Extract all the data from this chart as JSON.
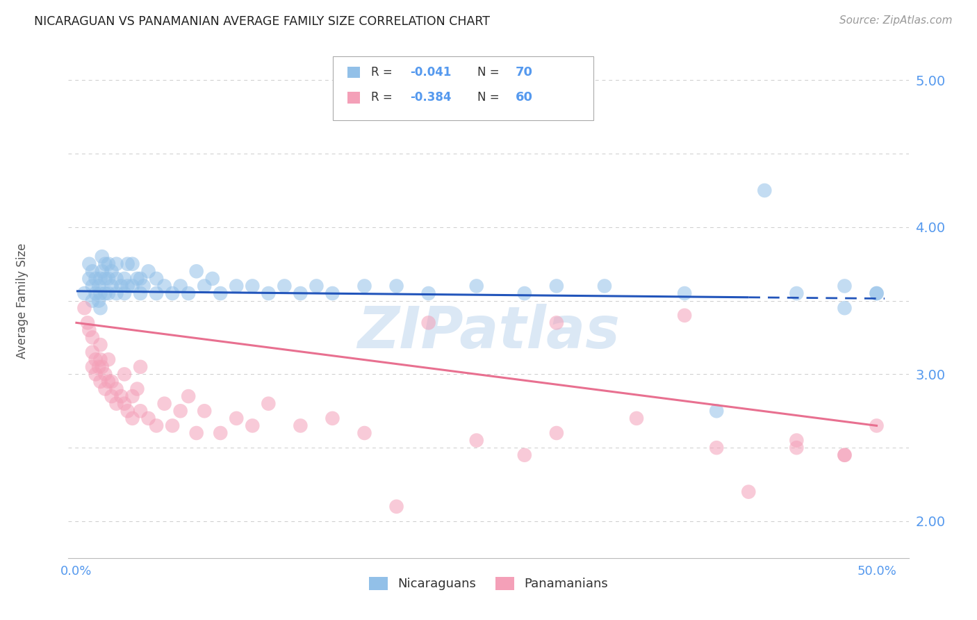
{
  "title": "NICARAGUAN VS PANAMANIAN AVERAGE FAMILY SIZE CORRELATION CHART",
  "source": "Source: ZipAtlas.com",
  "ylabel": "Average Family Size",
  "ylim": [
    1.75,
    5.25
  ],
  "xlim": [
    -0.005,
    0.52
  ],
  "yticks": [
    2.0,
    3.0,
    4.0,
    5.0
  ],
  "xticks": [
    0.0,
    0.1,
    0.2,
    0.3,
    0.4,
    0.5
  ],
  "blue_R": "-0.041",
  "blue_N": "70",
  "pink_R": "-0.384",
  "pink_N": "60",
  "legend_label_blue": "Nicaraguans",
  "legend_label_pink": "Panamanians",
  "blue_color": "#92C0E8",
  "pink_color": "#F4A0B8",
  "blue_line_color": "#2255BB",
  "pink_line_color": "#E87090",
  "bg_color": "#FFFFFF",
  "watermark": "ZIPatlas",
  "blue_x": [
    0.005,
    0.008,
    0.008,
    0.01,
    0.01,
    0.01,
    0.012,
    0.012,
    0.014,
    0.014,
    0.015,
    0.015,
    0.015,
    0.016,
    0.016,
    0.018,
    0.018,
    0.018,
    0.02,
    0.02,
    0.02,
    0.022,
    0.022,
    0.025,
    0.025,
    0.025,
    0.028,
    0.03,
    0.03,
    0.032,
    0.032,
    0.035,
    0.035,
    0.038,
    0.04,
    0.04,
    0.042,
    0.045,
    0.05,
    0.05,
    0.055,
    0.06,
    0.065,
    0.07,
    0.075,
    0.08,
    0.085,
    0.09,
    0.1,
    0.11,
    0.12,
    0.13,
    0.14,
    0.15,
    0.16,
    0.18,
    0.2,
    0.22,
    0.25,
    0.28,
    0.3,
    0.33,
    0.38,
    0.4,
    0.43,
    0.45,
    0.48,
    0.5,
    0.48,
    0.5
  ],
  "blue_y": [
    3.55,
    3.65,
    3.75,
    3.5,
    3.6,
    3.7,
    3.55,
    3.65,
    3.5,
    3.6,
    3.45,
    3.55,
    3.65,
    3.7,
    3.8,
    3.55,
    3.65,
    3.75,
    3.55,
    3.65,
    3.75,
    3.6,
    3.7,
    3.55,
    3.65,
    3.75,
    3.6,
    3.55,
    3.65,
    3.6,
    3.75,
    3.6,
    3.75,
    3.65,
    3.55,
    3.65,
    3.6,
    3.7,
    3.55,
    3.65,
    3.6,
    3.55,
    3.6,
    3.55,
    3.7,
    3.6,
    3.65,
    3.55,
    3.6,
    3.6,
    3.55,
    3.6,
    3.55,
    3.6,
    3.55,
    3.6,
    3.6,
    3.55,
    3.6,
    3.55,
    3.6,
    3.6,
    3.55,
    2.75,
    4.25,
    3.55,
    3.6,
    3.55,
    3.45,
    3.55
  ],
  "pink_x": [
    0.005,
    0.007,
    0.008,
    0.01,
    0.01,
    0.01,
    0.012,
    0.012,
    0.014,
    0.015,
    0.015,
    0.015,
    0.016,
    0.018,
    0.018,
    0.02,
    0.02,
    0.022,
    0.022,
    0.025,
    0.025,
    0.028,
    0.03,
    0.03,
    0.032,
    0.035,
    0.035,
    0.038,
    0.04,
    0.04,
    0.045,
    0.05,
    0.055,
    0.06,
    0.065,
    0.07,
    0.075,
    0.08,
    0.09,
    0.1,
    0.11,
    0.12,
    0.14,
    0.16,
    0.18,
    0.2,
    0.22,
    0.25,
    0.28,
    0.3,
    0.35,
    0.38,
    0.4,
    0.42,
    0.45,
    0.48,
    0.5,
    0.3,
    0.45,
    0.48
  ],
  "pink_y": [
    3.45,
    3.35,
    3.3,
    3.25,
    3.15,
    3.05,
    3.1,
    3.0,
    3.05,
    3.2,
    3.1,
    2.95,
    3.05,
    2.9,
    3.0,
    2.95,
    3.1,
    2.85,
    2.95,
    2.8,
    2.9,
    2.85,
    3.0,
    2.8,
    2.75,
    2.85,
    2.7,
    2.9,
    2.75,
    3.05,
    2.7,
    2.65,
    2.8,
    2.65,
    2.75,
    2.85,
    2.6,
    2.75,
    2.6,
    2.7,
    2.65,
    2.8,
    2.65,
    2.7,
    2.6,
    2.1,
    3.35,
    2.55,
    2.45,
    3.35,
    2.7,
    3.4,
    2.5,
    2.2,
    2.55,
    2.45,
    2.65,
    2.6,
    2.5,
    2.45
  ]
}
